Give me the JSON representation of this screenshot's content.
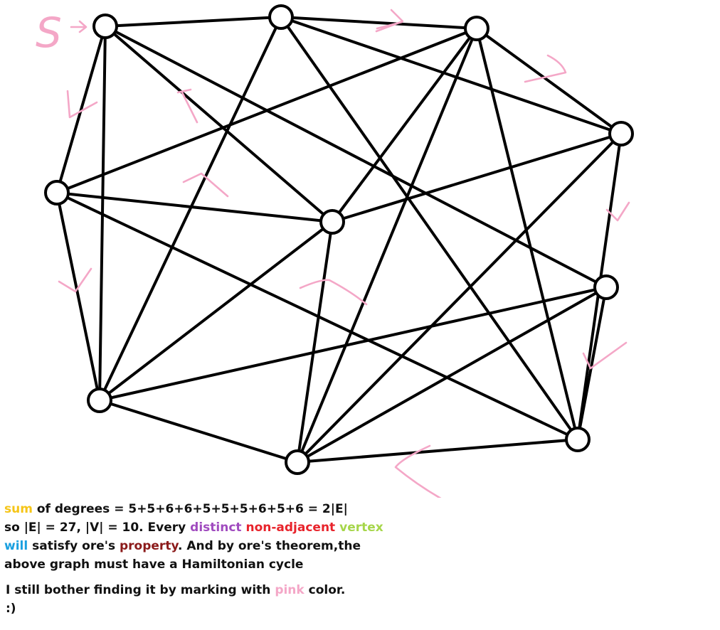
{
  "colors": {
    "node_fill": "#ffffff",
    "stroke": "#000000",
    "pink": "#f4a7c7"
  },
  "graph": {
    "start_label": "S",
    "vertex_count": 10,
    "edge_count": 27
  },
  "text": {
    "para1": {
      "line1": [
        {
          "t": "sum",
          "c": "#f5c518"
        },
        {
          "t": " of degrees = 5+5+6+6+5+5+5+6+5+6 = 2|E|",
          "c": "#111111"
        }
      ],
      "line2": [
        {
          "t": "so |E| = 27, |V| = 10. Every ",
          "c": "#111111"
        },
        {
          "t": "distinct",
          "c": "#a04bbf"
        },
        {
          "t": " ",
          "c": "#111111"
        },
        {
          "t": "non-adjacent",
          "c": "#e8232b"
        },
        {
          "t": " ",
          "c": "#111111"
        },
        {
          "t": "vertex",
          "c": "#a6d64a"
        }
      ],
      "line3": [
        {
          "t": "will",
          "c": "#1aa0e0"
        },
        {
          "t": " satisfy ore's ",
          "c": "#111111"
        },
        {
          "t": "property",
          "c": "#8b1a1a"
        },
        {
          "t": ". And by ore's theorem,the",
          "c": "#111111"
        }
      ],
      "line4": [
        {
          "t": "above graph must have a Hamiltonian cycle",
          "c": "#111111"
        }
      ]
    },
    "para2": {
      "line1": [
        {
          "t": "I still bother finding it by marking with ",
          "c": "#111111"
        },
        {
          "t": "pink",
          "c": "#f4a7c7"
        },
        {
          "t": " color.",
          "c": "#111111"
        }
      ],
      "line2": [
        {
          "t": ":)",
          "c": "#111111"
        }
      ]
    }
  }
}
